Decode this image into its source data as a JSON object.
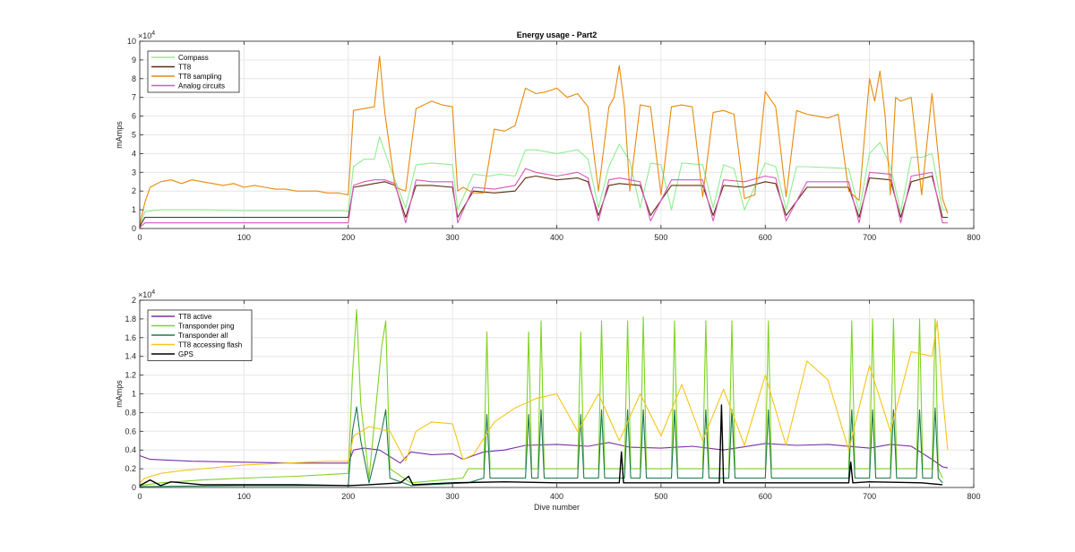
{
  "chart_data": [
    {
      "type": "line",
      "title": "Energy usage - Part2",
      "xlabel": "",
      "ylabel": "mAmps",
      "y_exponent": "4",
      "y_multiplier_label": "×10",
      "xlim": [
        0,
        800
      ],
      "ylim": [
        0,
        10
      ],
      "x_ticks": [
        0,
        100,
        200,
        300,
        400,
        500,
        600,
        700,
        800
      ],
      "y_ticks": [
        0,
        1,
        2,
        3,
        4,
        5,
        6,
        7,
        8,
        9,
        10
      ],
      "grid": true,
      "legend_position": "top-left",
      "series": [
        {
          "name": "Compass",
          "color": "#90ee90",
          "x": [
            0,
            5,
            20,
            60,
            100,
            150,
            195,
            200,
            205,
            215,
            225,
            230,
            240,
            255,
            265,
            280,
            300,
            305,
            320,
            335,
            345,
            360,
            370,
            380,
            400,
            420,
            430,
            440,
            450,
            460,
            470,
            480,
            490,
            500,
            510,
            520,
            540,
            550,
            560,
            570,
            580,
            600,
            610,
            620,
            630,
            640,
            680,
            690,
            700,
            710,
            720,
            730,
            740,
            750,
            760,
            770,
            775
          ],
          "values": [
            0.1,
            0.9,
            1.0,
            1.0,
            0.95,
            0.95,
            0.95,
            0.9,
            3.3,
            3.7,
            3.7,
            4.9,
            3.3,
            1.1,
            3.4,
            3.5,
            3.4,
            1.0,
            2.9,
            2.8,
            2.9,
            2.8,
            4.2,
            4.2,
            4.0,
            4.2,
            3.7,
            1.1,
            3.3,
            4.5,
            3.6,
            1.1,
            3.5,
            3.4,
            1.0,
            3.5,
            3.4,
            1.1,
            3.4,
            3.2,
            1.0,
            3.5,
            3.3,
            1.0,
            3.3,
            3.3,
            3.2,
            0.9,
            4.0,
            4.6,
            3.3,
            0.9,
            3.8,
            3.8,
            4.0,
            1.0,
            1.0
          ]
        },
        {
          "name": "TT8",
          "color": "#5c2e0e",
          "x": [
            0,
            5,
            20,
            60,
            100,
            150,
            195,
            200,
            205,
            215,
            225,
            235,
            245,
            255,
            265,
            280,
            300,
            305,
            320,
            340,
            360,
            370,
            380,
            400,
            420,
            430,
            440,
            450,
            460,
            480,
            490,
            510,
            520,
            540,
            550,
            560,
            580,
            600,
            610,
            620,
            640,
            680,
            690,
            700,
            720,
            730,
            740,
            760,
            770,
            775
          ],
          "values": [
            0.1,
            0.6,
            0.6,
            0.6,
            0.6,
            0.6,
            0.6,
            0.6,
            2.2,
            2.3,
            2.4,
            2.5,
            2.3,
            0.6,
            2.3,
            2.3,
            2.2,
            0.6,
            2.0,
            1.9,
            2.0,
            2.7,
            2.8,
            2.6,
            2.7,
            2.5,
            0.7,
            2.3,
            2.4,
            2.3,
            0.7,
            2.3,
            2.3,
            2.3,
            0.7,
            2.3,
            2.2,
            2.5,
            2.4,
            0.7,
            2.2,
            2.2,
            0.6,
            2.7,
            2.6,
            0.6,
            2.5,
            2.8,
            0.6,
            0.6
          ]
        },
        {
          "name": "TT8 sampling",
          "color": "#e8890c",
          "x": [
            0,
            5,
            10,
            20,
            30,
            40,
            50,
            60,
            70,
            80,
            90,
            100,
            110,
            120,
            130,
            140,
            150,
            160,
            170,
            180,
            190,
            200,
            205,
            215,
            225,
            230,
            235,
            245,
            255,
            265,
            280,
            290,
            300,
            305,
            310,
            320,
            330,
            340,
            350,
            360,
            370,
            380,
            390,
            400,
            410,
            420,
            430,
            440,
            450,
            455,
            460,
            465,
            470,
            480,
            490,
            500,
            510,
            520,
            530,
            540,
            550,
            560,
            570,
            580,
            590,
            600,
            610,
            620,
            630,
            640,
            650,
            660,
            670,
            680,
            690,
            700,
            705,
            710,
            715,
            720,
            725,
            730,
            740,
            750,
            760,
            770,
            775
          ],
          "values": [
            0.2,
            1.4,
            2.2,
            2.5,
            2.6,
            2.4,
            2.6,
            2.5,
            2.4,
            2.3,
            2.4,
            2.2,
            2.3,
            2.2,
            2.1,
            2.1,
            2.0,
            2.0,
            2.0,
            1.9,
            1.9,
            1.8,
            6.3,
            6.4,
            6.5,
            9.2,
            6.2,
            2.2,
            2.0,
            6.4,
            6.8,
            6.6,
            6.5,
            2.0,
            2.2,
            1.9,
            1.9,
            5.3,
            5.2,
            5.5,
            7.5,
            7.2,
            7.3,
            7.5,
            7.0,
            7.2,
            6.5,
            2.0,
            6.5,
            7.0,
            8.7,
            6.5,
            2.0,
            6.6,
            6.5,
            1.8,
            6.5,
            6.6,
            6.5,
            1.7,
            6.2,
            6.3,
            6.1,
            1.6,
            1.8,
            7.3,
            6.5,
            1.7,
            6.3,
            6.1,
            6.0,
            5.9,
            6.1,
            2.0,
            1.5,
            8.0,
            6.8,
            8.4,
            6.0,
            1.8,
            7.0,
            6.8,
            7.0,
            1.8,
            7.2,
            1.6,
            0.8
          ]
        },
        {
          "name": "Analog circuits",
          "color": "#d957b8",
          "x": [
            0,
            5,
            20,
            60,
            100,
            150,
            195,
            200,
            205,
            215,
            225,
            235,
            245,
            255,
            265,
            280,
            300,
            305,
            320,
            340,
            360,
            370,
            380,
            400,
            420,
            430,
            440,
            450,
            460,
            480,
            490,
            510,
            520,
            540,
            550,
            560,
            580,
            600,
            610,
            620,
            640,
            680,
            690,
            700,
            720,
            730,
            740,
            760,
            770,
            775
          ],
          "values": [
            0.05,
            0.3,
            0.3,
            0.3,
            0.3,
            0.3,
            0.3,
            0.3,
            2.3,
            2.5,
            2.6,
            2.6,
            2.4,
            0.3,
            2.6,
            2.5,
            2.5,
            0.3,
            2.2,
            2.1,
            2.3,
            3.2,
            3.0,
            2.8,
            3.0,
            2.7,
            0.4,
            2.6,
            2.7,
            2.5,
            0.4,
            2.6,
            2.6,
            2.6,
            0.4,
            2.6,
            2.5,
            2.8,
            2.7,
            0.4,
            2.5,
            2.5,
            0.3,
            3.0,
            2.9,
            0.3,
            2.8,
            3.0,
            0.3,
            0.3
          ]
        }
      ]
    },
    {
      "type": "line",
      "title": "",
      "xlabel": "Dive number",
      "ylabel": "mAmps",
      "y_exponent": "4",
      "y_multiplier_label": "×10",
      "xlim": [
        0,
        800
      ],
      "ylim": [
        0,
        2
      ],
      "x_ticks": [
        0,
        100,
        200,
        300,
        400,
        500,
        600,
        700,
        800
      ],
      "y_ticks": [
        0,
        0.2,
        0.4,
        0.6,
        0.8,
        1,
        1.2,
        1.4,
        1.6,
        1.8,
        2
      ],
      "y_tick_labels": [
        "0",
        "0.2",
        "0.4",
        "0.6",
        "0.8",
        "1",
        "1.2",
        "1.4",
        "1.6",
        "1.8",
        "2"
      ],
      "grid": true,
      "legend_position": "top-left",
      "series": [
        {
          "name": "TT8 active",
          "color": "#7b2fa3",
          "x": [
            0,
            10,
            50,
            100,
            150,
            200,
            205,
            215,
            230,
            250,
            260,
            280,
            300,
            310,
            330,
            350,
            370,
            400,
            430,
            450,
            470,
            500,
            530,
            560,
            600,
            630,
            660,
            690,
            700,
            720,
            740,
            760,
            770,
            775
          ],
          "values": [
            0.34,
            0.3,
            0.28,
            0.27,
            0.26,
            0.26,
            0.4,
            0.42,
            0.4,
            0.26,
            0.38,
            0.35,
            0.36,
            0.3,
            0.38,
            0.4,
            0.45,
            0.46,
            0.44,
            0.48,
            0.43,
            0.42,
            0.44,
            0.4,
            0.47,
            0.45,
            0.46,
            0.43,
            0.42,
            0.46,
            0.44,
            0.3,
            0.22,
            0.21
          ]
        },
        {
          "name": "Transponder ping",
          "color": "#7ed321",
          "x": [
            0,
            20,
            60,
            100,
            150,
            200,
            204,
            208,
            212,
            220,
            232,
            236,
            240,
            260,
            310,
            315,
            330,
            333,
            336,
            370,
            373,
            376,
            382,
            385,
            388,
            420,
            423,
            426,
            440,
            443,
            446,
            465,
            468,
            471,
            480,
            483,
            486,
            510,
            513,
            516,
            540,
            543,
            546,
            565,
            568,
            571,
            600,
            603,
            606,
            680,
            683,
            686,
            700,
            703,
            706,
            720,
            723,
            726,
            745,
            748,
            751,
            760,
            763,
            766,
            770
          ],
          "values": [
            0.02,
            0.05,
            0.08,
            0.1,
            0.12,
            0.15,
            1.2,
            1.9,
            0.9,
            0.1,
            1.5,
            1.78,
            0.2,
            0.05,
            0.1,
            0.2,
            0.2,
            1.66,
            0.2,
            0.2,
            1.66,
            0.2,
            0.2,
            1.78,
            0.2,
            0.2,
            1.66,
            0.2,
            0.2,
            1.78,
            0.2,
            0.2,
            1.78,
            0.2,
            0.2,
            1.82,
            0.2,
            0.2,
            1.78,
            0.2,
            0.2,
            1.78,
            0.2,
            0.2,
            1.78,
            0.2,
            0.2,
            1.78,
            0.2,
            0.2,
            1.78,
            0.2,
            0.2,
            1.8,
            0.2,
            0.2,
            1.8,
            0.2,
            0.2,
            1.8,
            0.2,
            0.2,
            1.8,
            0.2,
            0.1
          ]
        },
        {
          "name": "Transponder all",
          "color": "#1e7a4a",
          "x": [
            0,
            100,
            200,
            204,
            208,
            212,
            220,
            232,
            236,
            240,
            260,
            315,
            330,
            333,
            336,
            370,
            373,
            376,
            382,
            385,
            388,
            420,
            423,
            426,
            440,
            443,
            446,
            465,
            468,
            471,
            480,
            483,
            486,
            510,
            513,
            516,
            540,
            543,
            546,
            565,
            568,
            571,
            600,
            603,
            606,
            680,
            683,
            686,
            700,
            703,
            706,
            720,
            723,
            726,
            745,
            748,
            751,
            760,
            763,
            766,
            770
          ],
          "values": [
            0.01,
            0.02,
            0.02,
            0.6,
            0.86,
            0.5,
            0.05,
            0.6,
            0.83,
            0.1,
            0.02,
            0.05,
            0.1,
            0.78,
            0.1,
            0.1,
            0.78,
            0.1,
            0.1,
            0.83,
            0.1,
            0.1,
            0.78,
            0.1,
            0.1,
            0.83,
            0.1,
            0.1,
            0.83,
            0.1,
            0.1,
            0.83,
            0.1,
            0.1,
            0.83,
            0.1,
            0.1,
            0.83,
            0.1,
            0.1,
            0.83,
            0.1,
            0.1,
            0.83,
            0.1,
            0.1,
            0.83,
            0.1,
            0.1,
            0.83,
            0.1,
            0.1,
            0.83,
            0.1,
            0.1,
            0.83,
            0.1,
            0.1,
            0.85,
            0.1,
            0.05
          ]
        },
        {
          "name": "TT8 accessing flash",
          "color": "#f5c518",
          "x": [
            0,
            5,
            20,
            40,
            60,
            80,
            100,
            120,
            140,
            160,
            180,
            200,
            205,
            220,
            240,
            255,
            265,
            280,
            300,
            310,
            320,
            340,
            360,
            380,
            400,
            420,
            440,
            460,
            480,
            500,
            520,
            540,
            560,
            580,
            600,
            620,
            640,
            660,
            680,
            700,
            720,
            740,
            760,
            765,
            770,
            775
          ],
          "values": [
            0.05,
            0.1,
            0.15,
            0.18,
            0.2,
            0.22,
            0.24,
            0.25,
            0.26,
            0.27,
            0.28,
            0.28,
            0.55,
            0.65,
            0.6,
            0.28,
            0.6,
            0.7,
            0.68,
            0.3,
            0.35,
            0.7,
            0.85,
            0.95,
            1.0,
            0.6,
            1.0,
            0.5,
            1.0,
            0.55,
            1.1,
            0.5,
            1.05,
            0.45,
            1.2,
            0.45,
            1.35,
            1.15,
            0.4,
            1.3,
            0.6,
            1.45,
            1.4,
            1.78,
            1.0,
            0.4
          ]
        },
        {
          "name": "GPS",
          "color": "#000000",
          "x": [
            0,
            10,
            20,
            30,
            60,
            100,
            150,
            200,
            220,
            250,
            258,
            262,
            300,
            350,
            400,
            460,
            462,
            464,
            500,
            540,
            556,
            558,
            560,
            600,
            650,
            680,
            682,
            684,
            700,
            750,
            770
          ],
          "values": [
            0.02,
            0.08,
            0.02,
            0.06,
            0.03,
            0.03,
            0.03,
            0.02,
            0.03,
            0.05,
            0.12,
            0.03,
            0.05,
            0.06,
            0.05,
            0.05,
            0.38,
            0.05,
            0.05,
            0.05,
            0.05,
            0.88,
            0.05,
            0.05,
            0.05,
            0.05,
            0.27,
            0.05,
            0.06,
            0.05,
            0.03
          ]
        }
      ]
    }
  ]
}
